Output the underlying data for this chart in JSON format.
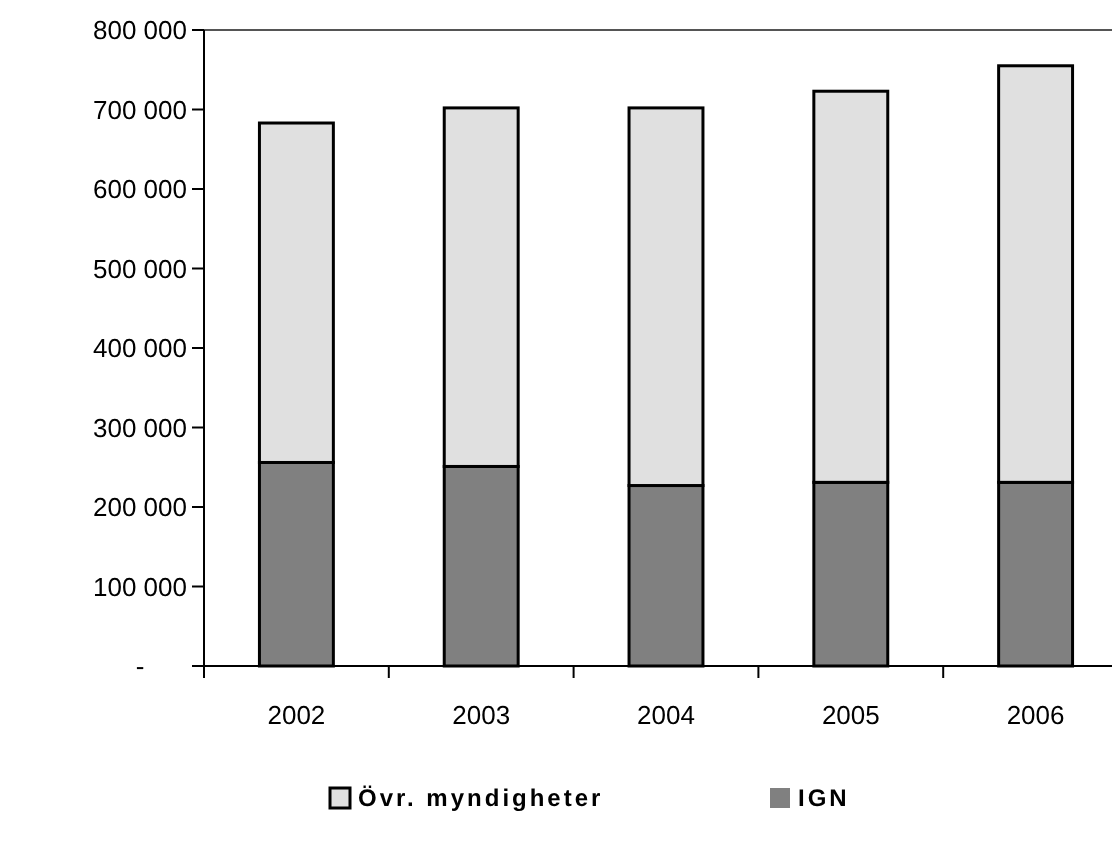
{
  "chart_data": {
    "type": "bar",
    "stacked": true,
    "categories": [
      "2002",
      "2003",
      "2004",
      "2005",
      "2006"
    ],
    "series": [
      {
        "name": "IGN",
        "color": "#808080",
        "values": [
          256000,
          251000,
          227000,
          231000,
          231000
        ]
      },
      {
        "name": "Övr. myndigheter",
        "color": "#e0e0e0",
        "values": [
          427000,
          451000,
          475000,
          492000,
          524000
        ]
      }
    ],
    "ylim": [
      0,
      800000
    ],
    "yticks": [
      {
        "value": 0,
        "label": "-"
      },
      {
        "value": 100000,
        "label": "100 000"
      },
      {
        "value": 200000,
        "label": "200 000"
      },
      {
        "value": 300000,
        "label": "300 000"
      },
      {
        "value": 400000,
        "label": "400 000"
      },
      {
        "value": 500000,
        "label": "500 000"
      },
      {
        "value": 600000,
        "label": "600 000"
      },
      {
        "value": 700000,
        "label": "700 000"
      },
      {
        "value": 800000,
        "label": "800 000"
      }
    ],
    "grid": false,
    "legend": "bottom"
  }
}
